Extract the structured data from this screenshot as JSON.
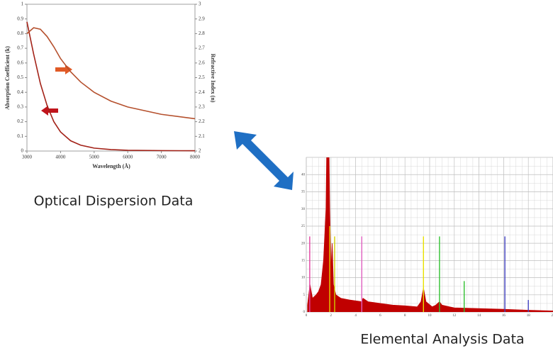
{
  "captions": [
    "Optical Dispersion Data",
    "Elemental Analysis Data"
  ],
  "chart_data": [
    {
      "type": "line",
      "xlabel": "Wavelength (Å)",
      "ylabel": "Absorption Coefficient (k)",
      "y2label": "Refractive Index (n)",
      "x": [
        3000,
        3200,
        3400,
        3600,
        3800,
        4000,
        4300,
        4600,
        5000,
        5500,
        6000,
        7000,
        8000
      ],
      "series": [
        {
          "color": "#a32218",
          "values": [
            0.88,
            0.66,
            0.46,
            0.31,
            0.2,
            0.13,
            0.07,
            0.04,
            0.02,
            0.01,
            0.005,
            0.003,
            0.002
          ]
        },
        {
          "color": "#b5502d",
          "axis": "y2",
          "values": [
            2.8,
            2.84,
            2.83,
            2.78,
            2.71,
            2.63,
            2.54,
            2.47,
            2.4,
            2.34,
            2.3,
            2.25,
            2.22
          ]
        }
      ],
      "xlim": [
        3000,
        8000
      ],
      "xticks": [
        3000,
        4000,
        5000,
        6000,
        7000,
        8000
      ],
      "ylim": [
        0,
        1
      ],
      "yticks": [
        0,
        0.1,
        0.2,
        0.3,
        0.4,
        0.5,
        0.6,
        0.7,
        0.8,
        0.9,
        1
      ],
      "y2lim": [
        2,
        3
      ],
      "y2ticks": [
        2,
        2.1,
        2.2,
        2.3,
        2.4,
        2.5,
        2.6,
        2.7,
        2.8,
        2.9,
        3
      ]
    },
    {
      "type": "spectrum",
      "x": [
        0.1,
        0.3,
        0.5,
        0.8,
        1.0,
        1.2,
        1.4,
        1.6,
        1.7,
        1.8,
        1.9,
        2.0,
        2.1,
        2.2,
        2.4,
        2.8,
        3.5,
        4.5,
        4.6,
        5,
        6,
        7,
        8,
        9,
        9.3,
        9.5,
        9.7,
        10.2,
        10.5,
        10.8,
        11,
        12,
        14,
        16,
        18,
        20
      ],
      "series": [
        {
          "color": "#c00000",
          "values": [
            2,
            8,
            4,
            5,
            6,
            8,
            15,
            30,
            60,
            60,
            30,
            12,
            20,
            8,
            5,
            4,
            3.5,
            3,
            4,
            3,
            2.5,
            2,
            1.8,
            1.5,
            3,
            7,
            3,
            1.5,
            2,
            3,
            2,
            1.2,
            1,
            0.8,
            0.5,
            0.3
          ]
        }
      ],
      "peaks": {
        "x": [
          0.28,
          1.9,
          2.3,
          4.5,
          9.5,
          10.8,
          12.8,
          16.1,
          18.0
        ],
        "values": [
          22,
          25,
          22,
          22,
          22,
          22,
          9,
          22,
          3.5
        ],
        "colors": [
          "#e040a0",
          "#e8d000",
          "#d0d000",
          "#e060c0",
          "#e8e000",
          "#30c030",
          "#30c030",
          "#4040c0",
          "#4040c0"
        ]
      },
      "xlim": [
        0,
        20
      ],
      "xticks": [
        0,
        2,
        4,
        6,
        8,
        10,
        12,
        14,
        16,
        18,
        20
      ],
      "ylim": [
        0,
        45
      ],
      "yticks": [
        0,
        5,
        10,
        15,
        20,
        25,
        30,
        35,
        40
      ]
    }
  ]
}
